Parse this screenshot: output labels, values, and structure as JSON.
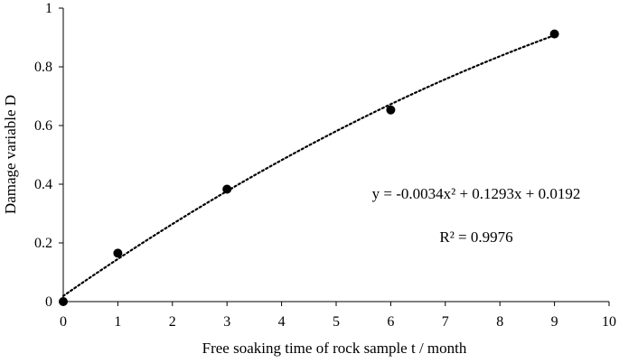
{
  "chart_data": {
    "type": "scatter",
    "xlabel": "Free soaking time of rock sample t / month",
    "ylabel": "Damage variable D",
    "xlim": [
      0,
      10
    ],
    "ylim": [
      0,
      1
    ],
    "x_ticks": [
      "0",
      "1",
      "2",
      "3",
      "4",
      "5",
      "6",
      "7",
      "8",
      "9",
      "10"
    ],
    "y_ticks": [
      "0",
      "0.2",
      "0.4",
      "0.6",
      "0.8",
      "1"
    ],
    "grid": false,
    "series": [
      {
        "x": [
          0,
          1,
          3,
          6,
          9
        ],
        "y": [
          0.0,
          0.165,
          0.383,
          0.653,
          0.912
        ],
        "marker": "circle",
        "color": "#000000"
      }
    ],
    "trendline": {
      "type": "polynomial-2",
      "style": "dotted",
      "coefficients": {
        "a": -0.0034,
        "b": 0.1293,
        "c": 0.0192
      },
      "x_range": [
        0,
        9
      ]
    },
    "annotations": {
      "equation": "y = -0.0034x² + 0.1293x + 0.0192",
      "r_squared": "R² = 0.9976"
    }
  }
}
